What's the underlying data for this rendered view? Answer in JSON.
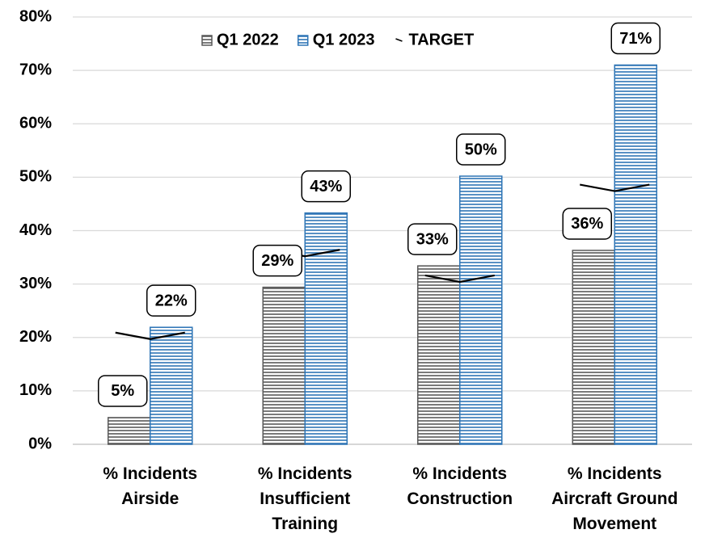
{
  "chart_data": {
    "type": "bar",
    "categories": [
      "% Incidents Airside",
      "% Incidents Insufficient Training",
      "% Incidents Construction",
      "% Incidents Aircraft Ground Movement"
    ],
    "series": [
      {
        "name": "Q1 2022",
        "color": "#595959",
        "values": [
          5.0,
          29.4,
          33.4,
          36.3
        ],
        "value_labels": [
          "5%",
          "29%",
          "33%",
          "36%"
        ]
      },
      {
        "name": "Q1 2023",
        "color": "#2e75b6",
        "values": [
          21.9,
          43.3,
          50.2,
          71.0
        ],
        "value_labels": [
          "22%",
          "43%",
          "50%",
          "71%"
        ]
      },
      {
        "name": "TARGET",
        "type": "marker",
        "color": "#000000",
        "values": [
          19.7,
          35.2,
          30.4,
          47.4
        ]
      }
    ],
    "ylim": [
      0,
      80
    ],
    "yticks": [
      {
        "value": 0,
        "label": "0%"
      },
      {
        "value": 10,
        "label": "10%"
      },
      {
        "value": 20,
        "label": "20%"
      },
      {
        "value": 30,
        "label": "30%"
      },
      {
        "value": 40,
        "label": "40%"
      },
      {
        "value": 50,
        "label": "50%"
      },
      {
        "value": 60,
        "label": "60%"
      },
      {
        "value": 70,
        "label": "70%"
      },
      {
        "value": 80,
        "label": "80%"
      }
    ],
    "grid": true,
    "legend": "top"
  }
}
